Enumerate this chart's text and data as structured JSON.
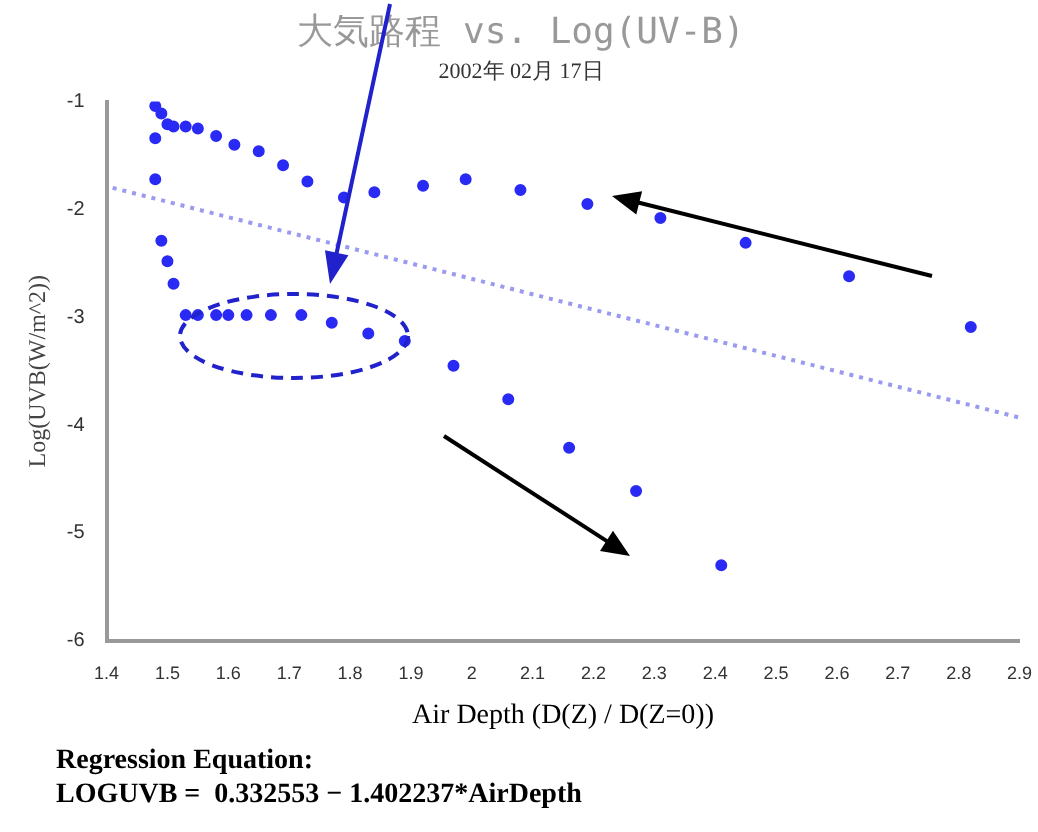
{
  "chart_data": {
    "type": "scatter",
    "title": "大気路程 vs. Log(UV-B)",
    "subtitle": "2002年 02月 17日",
    "xlabel": "Air Depth (D(Z) / D(Z=0))",
    "ylabel": "Log(UVB(W/m^2))",
    "xlim": [
      1.4,
      2.9
    ],
    "xticks": [
      1.4,
      1.5,
      1.6,
      1.7,
      1.8,
      1.9,
      2.0,
      2.1,
      2.2,
      2.3,
      2.4,
      2.5,
      2.6,
      2.7,
      2.8,
      2.9
    ],
    "ylim": [
      -6,
      -1
    ],
    "yticks": [
      -6,
      -5,
      -4,
      -3,
      -2,
      -1
    ],
    "grid": false,
    "series": [
      {
        "type": "scatter",
        "color": "#2a2af5",
        "marker": "circle",
        "x": [
          1.48,
          1.49,
          1.5,
          1.51,
          1.53,
          1.55,
          1.58,
          1.61,
          1.65,
          1.69,
          1.73,
          1.79,
          1.84,
          1.92,
          1.99,
          2.08,
          2.19,
          2.31,
          2.45,
          2.62,
          2.82,
          1.48,
          1.48,
          1.49,
          1.5,
          1.51,
          1.53,
          1.55,
          1.58,
          1.6,
          1.63,
          1.67,
          1.72,
          1.77,
          1.83,
          1.89,
          1.97,
          2.06,
          2.16,
          2.27,
          2.41
        ],
        "values": [
          -1.04,
          -1.11,
          -1.21,
          -1.23,
          -1.23,
          -1.25,
          -1.32,
          -1.4,
          -1.46,
          -1.59,
          -1.74,
          -1.89,
          -1.84,
          -1.78,
          -1.72,
          -1.82,
          -1.95,
          -2.08,
          -2.31,
          -2.62,
          -3.09,
          -1.34,
          -1.72,
          -2.29,
          -2.48,
          -2.69,
          -2.98,
          -2.98,
          -2.98,
          -2.98,
          -2.98,
          -2.98,
          -2.98,
          -3.05,
          -3.15,
          -3.22,
          -3.45,
          -3.76,
          -4.21,
          -4.61,
          -5.3
        ]
      },
      {
        "type": "line",
        "color": "#9a9af0",
        "marker": "none",
        "line_style": "dotted",
        "x": [
          1.41,
          2.9
        ],
        "values": [
          -1.8,
          -3.93
        ]
      }
    ],
    "annotations": [
      "Regression Equation:",
      "LOGUVB =  0.332553 − 1.402237*AirDepth"
    ]
  }
}
